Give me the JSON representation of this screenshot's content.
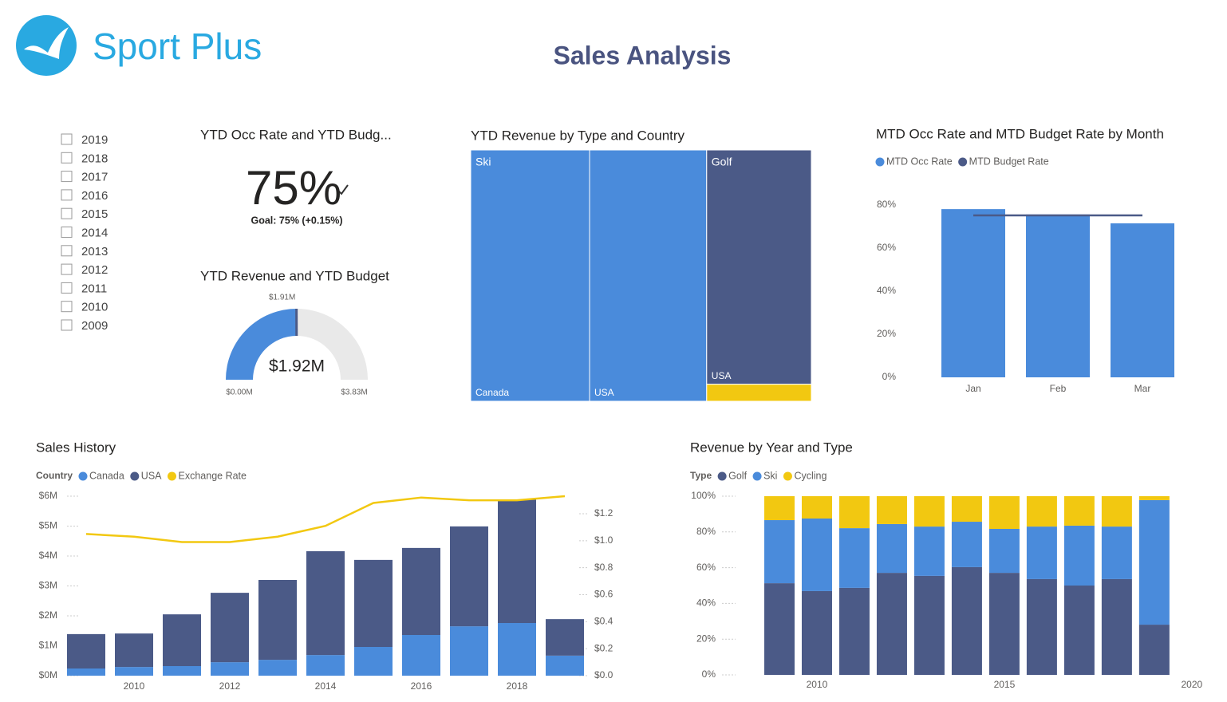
{
  "header": {
    "logo_text": "Sport Plus",
    "title": "Sales Analysis"
  },
  "slicer": {
    "items": [
      "2019",
      "2018",
      "2017",
      "2016",
      "2015",
      "2014",
      "2013",
      "2012",
      "2011",
      "2010",
      "2009"
    ]
  },
  "chart_data": [
    {
      "type": "kpi",
      "title": "YTD Occ Rate and YTD Budg...",
      "value": 75,
      "value_label": "75%",
      "goal_label": "Goal: 75% (+0.15%)"
    },
    {
      "type": "gauge",
      "title": "YTD Revenue and YTD Budget",
      "value": 1.92,
      "value_label": "$1.92M",
      "min": 0,
      "min_label": "$0.00M",
      "max": 3.83,
      "max_label": "$3.83M",
      "target": 1.91,
      "target_label": "$1.91M",
      "color": "#4a8bdb",
      "target_color": "#4b5a87"
    },
    {
      "type": "treemap",
      "title": "YTD Revenue by Type and Country",
      "groups": [
        {
          "name": "Ski",
          "color": "#4a8bdb",
          "children": [
            {
              "name": "Canada",
              "value": 0.67
            },
            {
              "name": "USA",
              "value": 0.66
            }
          ]
        },
        {
          "name": "Golf",
          "color": "#4b5a87",
          "children": [
            {
              "name": "USA",
              "value": 0.55
            }
          ]
        },
        {
          "name": null,
          "color": "#f2c811",
          "children": [
            {
              "name": null,
              "value": 0.04
            }
          ]
        }
      ]
    },
    {
      "type": "bar",
      "title": "MTD Occ Rate and MTD Budget Rate by Month",
      "categories": [
        "Jan",
        "Feb",
        "Mar"
      ],
      "series": [
        {
          "name": "MTD Occ Rate",
          "color": "#4a8bdb",
          "mark": "bar",
          "values": [
            78.1,
            75.6,
            71.5
          ]
        },
        {
          "name": "MTD Budget Rate",
          "color": "#4b5a87",
          "mark": "line",
          "values": [
            75.2,
            75.2,
            75.2
          ]
        }
      ],
      "ylim": [
        0,
        80
      ],
      "yticks": [
        {
          "value": 0,
          "label": "0%"
        },
        {
          "value": 20,
          "label": "20%"
        },
        {
          "value": 40,
          "label": "40%"
        },
        {
          "value": 60,
          "label": "60%"
        },
        {
          "value": 80,
          "label": "80%"
        }
      ],
      "grid": false
    },
    {
      "type": "combo",
      "title": "Sales History",
      "legend_title": "Country",
      "x": [
        2009,
        2010,
        2011,
        2012,
        2013,
        2014,
        2015,
        2016,
        2017,
        2018,
        2019
      ],
      "series": [
        {
          "name": "Canada",
          "color": "#4a8bdb",
          "mark": "bar",
          "values": [
            0.24,
            0.29,
            0.32,
            0.45,
            0.53,
            0.69,
            0.96,
            1.36,
            1.65,
            1.76,
            0.67
          ]
        },
        {
          "name": "USA",
          "color": "#4b5a87",
          "mark": "bar",
          "values": [
            1.15,
            1.12,
            1.73,
            2.32,
            2.67,
            3.47,
            2.91,
            2.91,
            3.34,
            4.13,
            1.22
          ]
        },
        {
          "name": "Exchange Rate",
          "color": "#f2c811",
          "mark": "line",
          "axis": "y2",
          "values": [
            1.05,
            1.03,
            0.99,
            0.99,
            1.03,
            1.11,
            1.28,
            1.32,
            1.3,
            1.3,
            1.33
          ]
        }
      ],
      "xlim": [
        2008.5,
        2019.5
      ],
      "xticks": [
        2010,
        2012,
        2014,
        2016,
        2018
      ],
      "ylim": [
        0,
        6
      ],
      "yticks": [
        {
          "value": 0,
          "label": "$0M"
        },
        {
          "value": 1,
          "label": "$1M"
        },
        {
          "value": 2,
          "label": "$2M"
        },
        {
          "value": 3,
          "label": "$3M"
        },
        {
          "value": 4,
          "label": "$4M"
        },
        {
          "value": 5,
          "label": "$5M"
        },
        {
          "value": 6,
          "label": "$6M"
        }
      ],
      "y2lim": [
        0,
        1.33
      ],
      "y2ticks": [
        {
          "value": 0,
          "label": "$0.0"
        },
        {
          "value": 0.2,
          "label": "$0.2"
        },
        {
          "value": 0.4,
          "label": "$0.4"
        },
        {
          "value": 0.6,
          "label": "$0.6"
        },
        {
          "value": 0.8,
          "label": "$0.8"
        },
        {
          "value": 1.0,
          "label": "$1.0"
        },
        {
          "value": 1.2,
          "label": "$1.2"
        }
      ]
    },
    {
      "type": "stacked",
      "title": "Revenue by Year and Type",
      "legend_title": "Type",
      "x": [
        2009,
        2010,
        2011,
        2012,
        2013,
        2014,
        2015,
        2016,
        2017,
        2018,
        2019
      ],
      "series": [
        {
          "name": "Golf",
          "color": "#4b5a87",
          "values": [
            51.3,
            46.9,
            48.7,
            57.1,
            55.4,
            60.3,
            57.1,
            53.6,
            50.0,
            53.6,
            28.1
          ]
        },
        {
          "name": "Ski",
          "color": "#4a8bdb",
          "values": [
            35.3,
            40.6,
            33.4,
            27.3,
            27.6,
            25.4,
            24.6,
            29.4,
            33.5,
            29.4,
            69.7
          ]
        },
        {
          "name": "Cycling",
          "color": "#f2c811",
          "values": [
            13.4,
            12.5,
            17.9,
            15.6,
            17.0,
            14.3,
            18.3,
            17.0,
            16.5,
            17.0,
            2.2
          ]
        }
      ],
      "xlim": [
        2008.1,
        2020.45
      ],
      "xticks": [
        2010,
        2015,
        2020
      ],
      "ylim": [
        0,
        100
      ],
      "yticks": [
        {
          "value": 0,
          "label": "0%"
        },
        {
          "value": 20,
          "label": "20%"
        },
        {
          "value": 40,
          "label": "40%"
        },
        {
          "value": 60,
          "label": "60%"
        },
        {
          "value": 80,
          "label": "80%"
        },
        {
          "value": 100,
          "label": "100%"
        }
      ]
    }
  ]
}
